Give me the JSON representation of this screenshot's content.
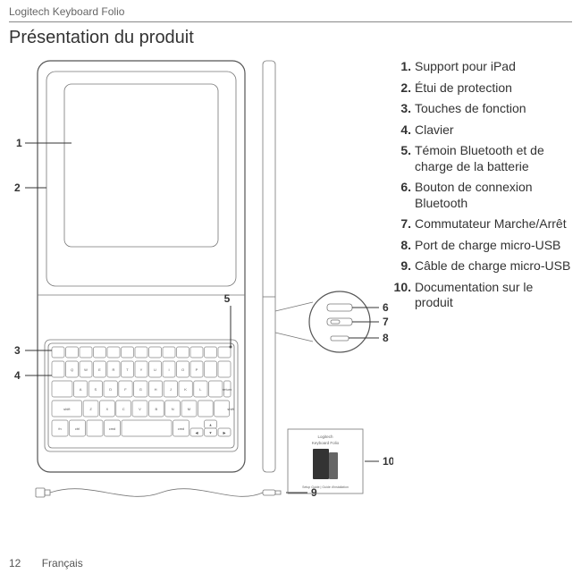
{
  "header": "Logitech Keyboard Folio",
  "title": "Présentation du produit",
  "page_number": "12",
  "language_label": "Français",
  "legend": [
    {
      "num": "1.",
      "text": "Support pour iPad"
    },
    {
      "num": "2.",
      "text": "Étui de protection"
    },
    {
      "num": "3.",
      "text": "Touches de fonction"
    },
    {
      "num": "4.",
      "text": "Clavier"
    },
    {
      "num": "5.",
      "text": "Témoin Bluetooth et de charge de la batterie"
    },
    {
      "num": "6.",
      "text": "Bouton de connexion Bluetooth"
    },
    {
      "num": "7.",
      "text": "Commutateur Marche/Arrêt"
    },
    {
      "num": "8.",
      "text": "Port de charge micro-USB"
    },
    {
      "num": "9.",
      "text": "Câble de charge micro-USB"
    },
    {
      "num": "10.",
      "text": "Documentation sur le produit"
    }
  ],
  "callouts": {
    "c1": "1",
    "c2": "2",
    "c3": "3",
    "c4": "4",
    "c5": "5",
    "c6": "6",
    "c7": "7",
    "c8": "8",
    "c9": "9",
    "c10": "10"
  },
  "keyboard": {
    "row1": [
      "Q",
      "W",
      "E",
      "R",
      "T",
      "Y",
      "U",
      "I",
      "O",
      "P"
    ],
    "row2": [
      "A",
      "S",
      "D",
      "F",
      "G",
      "H",
      "J",
      "K",
      "L"
    ],
    "row3": [
      "Z",
      "X",
      "C",
      "V",
      "B",
      "N",
      "M"
    ]
  },
  "doc_card": {
    "brand": "Logitech",
    "product": "Keyboard Folio",
    "subtitle": "Setup Guide  |  Guide d'installation"
  }
}
